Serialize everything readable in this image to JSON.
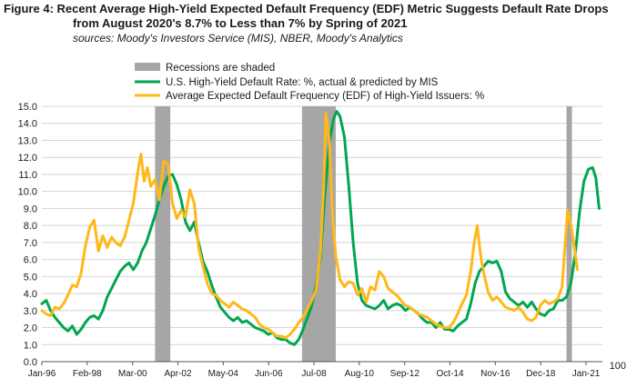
{
  "figure": {
    "label": "Figure 4:",
    "title_line1": "Recent Average High-Yield Expected Default Frequency (EDF) Metric Suggests Default Rate Drops",
    "title_line2": "from August 2020's 8.7% to Less than 7% by Spring of 2021",
    "sources": "sources: Moody's Investors Service (MIS), NBER, Moody's Analytics"
  },
  "chart_data": {
    "type": "line",
    "title": "Recent Average High-Yield Expected Default Frequency (EDF) Metric Suggests Default Rate Drops from August 2020's 8.7% to Less than 7% by Spring of 2021",
    "xlabel": "",
    "ylabel": "",
    "ylim": [
      0,
      15
    ],
    "yticks": [
      "0.0",
      "1.0",
      "2.0",
      "3.0",
      "4.0",
      "5.0",
      "6.0",
      "7.0",
      "8.0",
      "9.0",
      "10.0",
      "11.0",
      "12.0",
      "13.0",
      "14.0",
      "15.0"
    ],
    "xlim": [
      1996.0,
      2021.75
    ],
    "xticks": [
      {
        "label": "Jan-96",
        "t": 1996.0
      },
      {
        "label": "Feb-98",
        "t": 1998.08
      },
      {
        "label": "Mar-00",
        "t": 2000.17
      },
      {
        "label": "Apr-02",
        "t": 2002.25
      },
      {
        "label": "May-04",
        "t": 2004.33
      },
      {
        "label": "Jun-06",
        "t": 2006.42
      },
      {
        "label": "Jul-08",
        "t": 2008.5
      },
      {
        "label": "Aug-10",
        "t": 2010.58
      },
      {
        "label": "Sep-12",
        "t": 2012.67
      },
      {
        "label": "Oct-14",
        "t": 2014.75
      },
      {
        "label": "Nov-16",
        "t": 2016.83
      },
      {
        "label": "Dec-18",
        "t": 2018.92
      },
      {
        "label": "Jan-21",
        "t": 2021.0
      }
    ],
    "recessions": [
      {
        "start": 2001.2,
        "end": 2001.9
      },
      {
        "start": 2007.95,
        "end": 2009.5
      },
      {
        "start": 2020.1,
        "end": 2020.35
      }
    ],
    "legend": {
      "recession_label": "Recessions are shaded",
      "entries": [
        {
          "name": "U.S. High-Yield Default Rate: %, actual & predicted by MIS",
          "color": "#00a651"
        },
        {
          "name": "Average Expected Default Frequency (EDF) of High-Yield Issuers: %",
          "color": "#ffb819"
        }
      ]
    },
    "series": [
      {
        "name": "U.S. High-Yield Default Rate: %, actual & predicted by MIS",
        "color": "#00a651",
        "points": [
          [
            1996.0,
            3.4
          ],
          [
            1996.2,
            3.6
          ],
          [
            1996.4,
            3.0
          ],
          [
            1996.6,
            2.6
          ],
          [
            1996.8,
            2.3
          ],
          [
            1997.0,
            2.0
          ],
          [
            1997.2,
            1.8
          ],
          [
            1997.4,
            2.1
          ],
          [
            1997.6,
            1.6
          ],
          [
            1997.8,
            1.9
          ],
          [
            1998.0,
            2.3
          ],
          [
            1998.2,
            2.6
          ],
          [
            1998.4,
            2.7
          ],
          [
            1998.6,
            2.5
          ],
          [
            1998.8,
            3.0
          ],
          [
            1999.0,
            3.8
          ],
          [
            1999.2,
            4.3
          ],
          [
            1999.4,
            4.8
          ],
          [
            1999.6,
            5.3
          ],
          [
            1999.8,
            5.6
          ],
          [
            2000.0,
            5.8
          ],
          [
            2000.2,
            5.4
          ],
          [
            2000.4,
            5.8
          ],
          [
            2000.6,
            6.5
          ],
          [
            2000.8,
            7.0
          ],
          [
            2001.0,
            7.8
          ],
          [
            2001.2,
            8.6
          ],
          [
            2001.4,
            9.5
          ],
          [
            2001.6,
            10.3
          ],
          [
            2001.8,
            10.9
          ],
          [
            2002.0,
            11.0
          ],
          [
            2002.2,
            10.4
          ],
          [
            2002.4,
            9.5
          ],
          [
            2002.6,
            8.2
          ],
          [
            2002.8,
            7.7
          ],
          [
            2003.0,
            8.2
          ],
          [
            2003.2,
            7.0
          ],
          [
            2003.4,
            5.9
          ],
          [
            2003.6,
            5.3
          ],
          [
            2003.8,
            4.5
          ],
          [
            2004.0,
            3.8
          ],
          [
            2004.2,
            3.2
          ],
          [
            2004.4,
            2.9
          ],
          [
            2004.6,
            2.6
          ],
          [
            2004.8,
            2.4
          ],
          [
            2005.0,
            2.6
          ],
          [
            2005.2,
            2.3
          ],
          [
            2005.4,
            2.4
          ],
          [
            2005.6,
            2.2
          ],
          [
            2005.8,
            2.0
          ],
          [
            2006.0,
            1.9
          ],
          [
            2006.2,
            1.8
          ],
          [
            2006.4,
            1.6
          ],
          [
            2006.6,
            1.7
          ],
          [
            2006.8,
            1.4
          ],
          [
            2007.0,
            1.3
          ],
          [
            2007.2,
            1.3
          ],
          [
            2007.4,
            1.1
          ],
          [
            2007.6,
            1.0
          ],
          [
            2007.8,
            1.3
          ],
          [
            2008.0,
            1.9
          ],
          [
            2008.2,
            2.6
          ],
          [
            2008.4,
            3.3
          ],
          [
            2008.6,
            4.5
          ],
          [
            2008.8,
            6.2
          ],
          [
            2009.0,
            9.8
          ],
          [
            2009.2,
            12.8
          ],
          [
            2009.4,
            14.3
          ],
          [
            2009.55,
            14.7
          ],
          [
            2009.7,
            14.4
          ],
          [
            2009.9,
            13.2
          ],
          [
            2010.1,
            10.3
          ],
          [
            2010.3,
            7.0
          ],
          [
            2010.5,
            4.6
          ],
          [
            2010.7,
            3.6
          ],
          [
            2010.9,
            3.3
          ],
          [
            2011.1,
            3.2
          ],
          [
            2011.3,
            3.1
          ],
          [
            2011.5,
            3.3
          ],
          [
            2011.7,
            3.6
          ],
          [
            2011.9,
            3.1
          ],
          [
            2012.1,
            3.3
          ],
          [
            2012.3,
            3.4
          ],
          [
            2012.5,
            3.3
          ],
          [
            2012.7,
            3.0
          ],
          [
            2012.9,
            3.2
          ],
          [
            2013.1,
            3.0
          ],
          [
            2013.3,
            2.8
          ],
          [
            2013.5,
            2.5
          ],
          [
            2013.7,
            2.3
          ],
          [
            2013.9,
            2.3
          ],
          [
            2014.1,
            2.0
          ],
          [
            2014.3,
            2.3
          ],
          [
            2014.5,
            1.9
          ],
          [
            2014.7,
            1.9
          ],
          [
            2014.9,
            1.8
          ],
          [
            2015.1,
            2.1
          ],
          [
            2015.3,
            2.3
          ],
          [
            2015.5,
            2.5
          ],
          [
            2015.7,
            3.4
          ],
          [
            2015.9,
            4.6
          ],
          [
            2016.1,
            5.3
          ],
          [
            2016.3,
            5.6
          ],
          [
            2016.5,
            5.9
          ],
          [
            2016.7,
            5.8
          ],
          [
            2016.9,
            5.9
          ],
          [
            2017.1,
            5.3
          ],
          [
            2017.3,
            4.1
          ],
          [
            2017.5,
            3.7
          ],
          [
            2017.7,
            3.5
          ],
          [
            2017.9,
            3.3
          ],
          [
            2018.1,
            3.5
          ],
          [
            2018.3,
            3.2
          ],
          [
            2018.5,
            3.5
          ],
          [
            2018.7,
            3.1
          ],
          [
            2018.9,
            2.8
          ],
          [
            2019.1,
            2.7
          ],
          [
            2019.3,
            3.0
          ],
          [
            2019.5,
            3.1
          ],
          [
            2019.7,
            3.6
          ],
          [
            2019.9,
            3.6
          ],
          [
            2020.1,
            3.8
          ],
          [
            2020.3,
            4.6
          ],
          [
            2020.5,
            6.3
          ],
          [
            2020.7,
            8.8
          ],
          [
            2020.9,
            10.6
          ],
          [
            2021.1,
            11.3
          ],
          [
            2021.3,
            11.4
          ],
          [
            2021.45,
            10.8
          ],
          [
            2021.6,
            9.0
          ]
        ]
      },
      {
        "name": "Average Expected Default Frequency (EDF) of High-Yield Issuers: %",
        "color": "#ffb819",
        "points": [
          [
            1996.0,
            3.0
          ],
          [
            1996.2,
            2.8
          ],
          [
            1996.4,
            2.7
          ],
          [
            1996.6,
            3.2
          ],
          [
            1996.8,
            3.1
          ],
          [
            1997.0,
            3.4
          ],
          [
            1997.2,
            3.9
          ],
          [
            1997.4,
            4.5
          ],
          [
            1997.6,
            4.4
          ],
          [
            1997.8,
            5.2
          ],
          [
            1998.0,
            6.8
          ],
          [
            1998.2,
            7.9
          ],
          [
            1998.4,
            8.3
          ],
          [
            1998.6,
            6.5
          ],
          [
            1998.8,
            7.4
          ],
          [
            1999.0,
            6.7
          ],
          [
            1999.2,
            7.3
          ],
          [
            1999.4,
            7.0
          ],
          [
            1999.6,
            6.8
          ],
          [
            1999.8,
            7.3
          ],
          [
            2000.0,
            8.3
          ],
          [
            2000.2,
            9.3
          ],
          [
            2000.4,
            11.1
          ],
          [
            2000.55,
            12.2
          ],
          [
            2000.7,
            10.6
          ],
          [
            2000.85,
            11.4
          ],
          [
            2001.0,
            10.3
          ],
          [
            2001.2,
            10.7
          ],
          [
            2001.4,
            9.5
          ],
          [
            2001.6,
            11.8
          ],
          [
            2001.8,
            11.6
          ],
          [
            2002.0,
            9.3
          ],
          [
            2002.2,
            8.4
          ],
          [
            2002.4,
            8.9
          ],
          [
            2002.6,
            8.5
          ],
          [
            2002.8,
            10.1
          ],
          [
            2003.0,
            9.3
          ],
          [
            2003.2,
            6.7
          ],
          [
            2003.4,
            5.6
          ],
          [
            2003.6,
            4.6
          ],
          [
            2003.8,
            4.0
          ],
          [
            2004.0,
            3.9
          ],
          [
            2004.2,
            3.6
          ],
          [
            2004.4,
            3.4
          ],
          [
            2004.6,
            3.2
          ],
          [
            2004.8,
            3.5
          ],
          [
            2005.0,
            3.3
          ],
          [
            2005.2,
            3.1
          ],
          [
            2005.4,
            3.0
          ],
          [
            2005.6,
            2.8
          ],
          [
            2005.8,
            2.6
          ],
          [
            2006.0,
            2.2
          ],
          [
            2006.2,
            2.0
          ],
          [
            2006.4,
            1.9
          ],
          [
            2006.6,
            1.7
          ],
          [
            2006.8,
            1.5
          ],
          [
            2007.0,
            1.5
          ],
          [
            2007.2,
            1.4
          ],
          [
            2007.4,
            1.6
          ],
          [
            2007.6,
            1.9
          ],
          [
            2007.8,
            2.3
          ],
          [
            2008.0,
            2.6
          ],
          [
            2008.2,
            3.1
          ],
          [
            2008.4,
            3.6
          ],
          [
            2008.6,
            4.2
          ],
          [
            2008.8,
            6.5
          ],
          [
            2008.95,
            10.4
          ],
          [
            2009.05,
            14.6
          ],
          [
            2009.2,
            13.0
          ],
          [
            2009.35,
            8.6
          ],
          [
            2009.5,
            6.2
          ],
          [
            2009.7,
            4.8
          ],
          [
            2009.9,
            4.4
          ],
          [
            2010.1,
            4.7
          ],
          [
            2010.3,
            4.6
          ],
          [
            2010.5,
            3.9
          ],
          [
            2010.7,
            4.3
          ],
          [
            2010.9,
            3.5
          ],
          [
            2011.1,
            4.4
          ],
          [
            2011.3,
            4.2
          ],
          [
            2011.5,
            5.3
          ],
          [
            2011.7,
            5.0
          ],
          [
            2011.9,
            4.3
          ],
          [
            2012.1,
            4.1
          ],
          [
            2012.3,
            3.9
          ],
          [
            2012.5,
            3.6
          ],
          [
            2012.7,
            3.3
          ],
          [
            2012.9,
            3.2
          ],
          [
            2013.1,
            3.0
          ],
          [
            2013.3,
            2.8
          ],
          [
            2013.5,
            2.7
          ],
          [
            2013.7,
            2.6
          ],
          [
            2013.9,
            2.4
          ],
          [
            2014.1,
            2.2
          ],
          [
            2014.3,
            2.1
          ],
          [
            2014.5,
            2.0
          ],
          [
            2014.7,
            2.0
          ],
          [
            2014.9,
            2.3
          ],
          [
            2015.1,
            2.8
          ],
          [
            2015.3,
            3.4
          ],
          [
            2015.5,
            3.9
          ],
          [
            2015.7,
            5.3
          ],
          [
            2015.85,
            6.9
          ],
          [
            2016.0,
            8.0
          ],
          [
            2016.15,
            6.3
          ],
          [
            2016.3,
            5.2
          ],
          [
            2016.5,
            4.1
          ],
          [
            2016.7,
            3.6
          ],
          [
            2016.9,
            3.8
          ],
          [
            2017.1,
            3.5
          ],
          [
            2017.3,
            3.2
          ],
          [
            2017.5,
            3.1
          ],
          [
            2017.7,
            3.0
          ],
          [
            2017.9,
            3.2
          ],
          [
            2018.1,
            2.9
          ],
          [
            2018.3,
            2.5
          ],
          [
            2018.5,
            2.4
          ],
          [
            2018.7,
            2.6
          ],
          [
            2018.9,
            3.3
          ],
          [
            2019.1,
            3.6
          ],
          [
            2019.3,
            3.4
          ],
          [
            2019.5,
            3.5
          ],
          [
            2019.7,
            3.7
          ],
          [
            2019.9,
            4.4
          ],
          [
            2020.0,
            6.2
          ],
          [
            2020.15,
            8.9
          ],
          [
            2020.3,
            8.1
          ],
          [
            2020.45,
            6.8
          ],
          [
            2020.6,
            5.4
          ]
        ]
      }
    ]
  },
  "corner_label": "100"
}
